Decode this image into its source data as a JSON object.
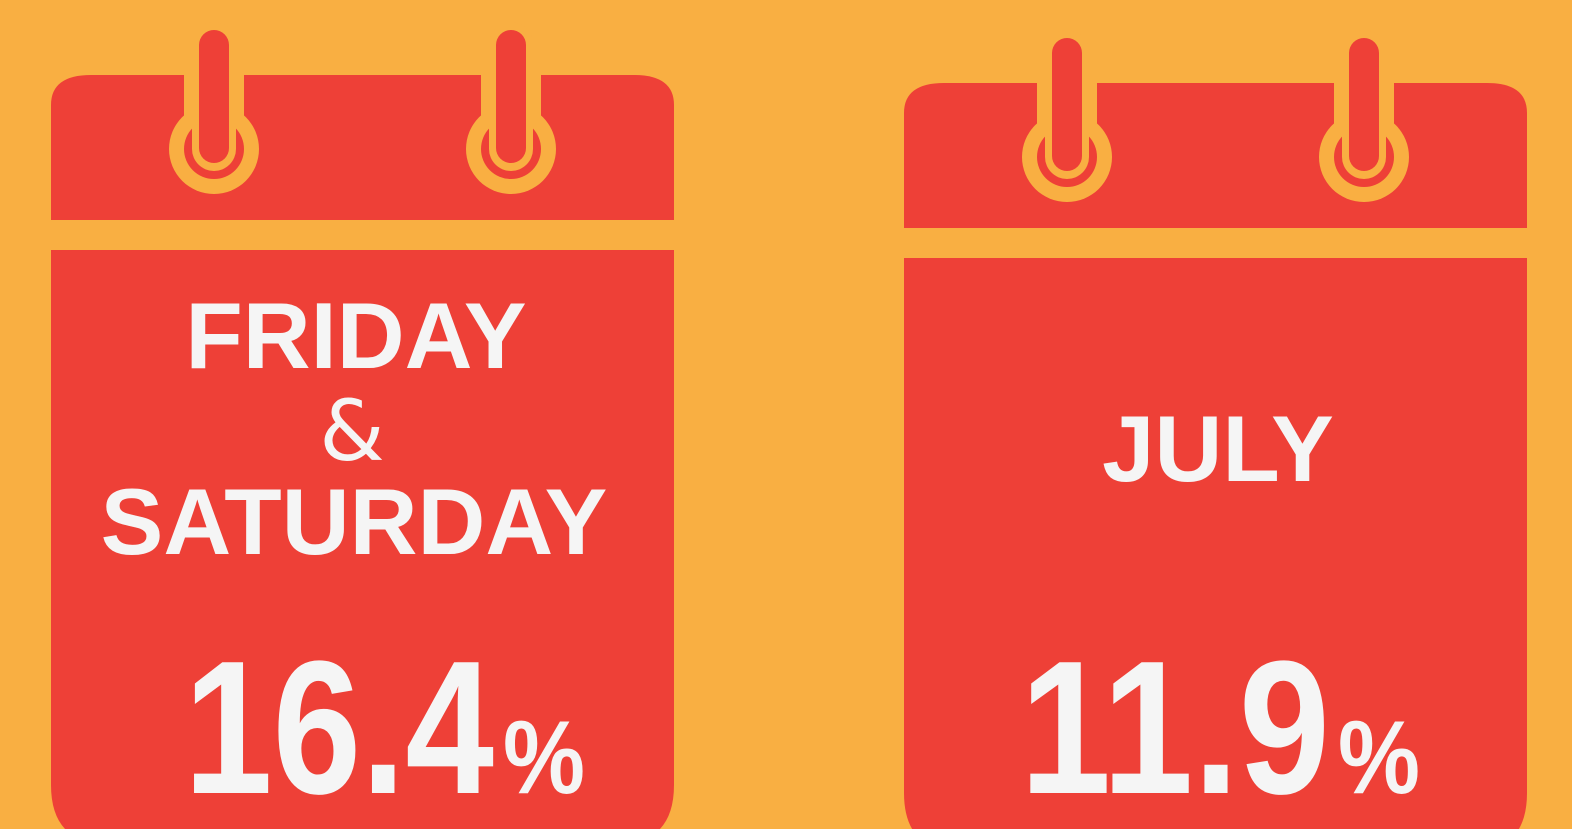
{
  "cards": [
    {
      "label_lines": [
        "FRIDAY",
        "&",
        "SATURDAY"
      ],
      "value": 16.4,
      "unit": "%"
    },
    {
      "label_lines": [
        "JULY"
      ],
      "value": 11.9,
      "unit": "%"
    }
  ]
}
